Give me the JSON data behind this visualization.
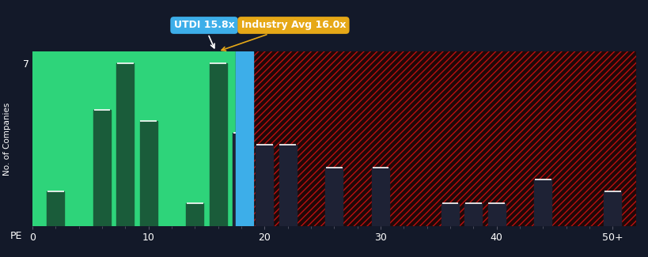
{
  "bg_color": "#131929",
  "plot_bg_color": "#131929",
  "green_bg": "#2ed47a",
  "green_bar": "#1a5c3a",
  "blue_bar": "#3daee9",
  "dark_bar": "#1e2235",
  "bar_edge_color": "#ffffff",
  "title_utdi": "UTDI 15.8x",
  "title_industry": "Industry Avg 16.0x",
  "utdi_bg": "#3daee9",
  "industry_bg": "#e6a817",
  "utdi_x": 15.8,
  "industry_x": 16.0,
  "ylabel": "No. of Companies",
  "xlabel": "PE",
  "ytick_label": "7",
  "xlim": [
    0,
    52
  ],
  "ylim": [
    0,
    7.5
  ],
  "bar_centers": [
    2,
    4,
    6,
    8,
    10,
    12,
    14,
    16,
    18,
    20,
    22,
    24,
    26,
    28,
    30,
    32,
    34,
    36,
    38,
    40,
    42,
    44,
    46,
    48,
    50
  ],
  "bar_heights": [
    1.5,
    0,
    5,
    7,
    4.5,
    0,
    1,
    7,
    4,
    3.5,
    3.5,
    0,
    2.5,
    0,
    2.5,
    0,
    0,
    1,
    1,
    1,
    0,
    2,
    0,
    0,
    1.5
  ],
  "xtick_positions": [
    0,
    10,
    20,
    30,
    40,
    50
  ],
  "xtick_labels": [
    "0",
    "10",
    "20",
    "30",
    "40",
    "50+"
  ],
  "text_color": "#ffffff",
  "blue_bar_x": 17.5,
  "blue_bar_width": 1.5,
  "green_end_x": 17.5,
  "red_start_x": 17.5
}
